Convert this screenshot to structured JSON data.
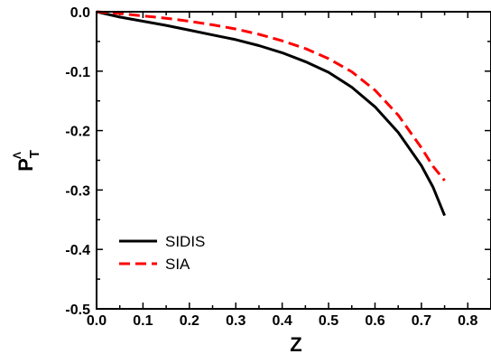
{
  "chart_data": {
    "type": "line",
    "title": "",
    "xlabel": "Z",
    "ylabel": {
      "main": "P",
      "sub": "T",
      "sup": "Λ"
    },
    "xlim": [
      0.0,
      0.85
    ],
    "ylim": [
      -0.5,
      0.0
    ],
    "x_ticks": [
      {
        "value": 0.0,
        "label": "0.0"
      },
      {
        "value": 0.1,
        "label": "0.1"
      },
      {
        "value": 0.2,
        "label": "0.2"
      },
      {
        "value": 0.3,
        "label": "0.3"
      },
      {
        "value": 0.4,
        "label": "0.4"
      },
      {
        "value": 0.5,
        "label": "0.5"
      },
      {
        "value": 0.6,
        "label": "0.6"
      },
      {
        "value": 0.7,
        "label": "0.7"
      },
      {
        "value": 0.8,
        "label": "0.8"
      }
    ],
    "y_ticks": [
      {
        "value": 0.0,
        "label": "0.0"
      },
      {
        "value": -0.1,
        "label": "-0.1"
      },
      {
        "value": -0.2,
        "label": "-0.2"
      },
      {
        "value": -0.3,
        "label": "-0.3"
      },
      {
        "value": -0.4,
        "label": "-0.4"
      },
      {
        "value": -0.5,
        "label": "-0.5"
      }
    ],
    "grid": false,
    "legend_position": "bottom-left",
    "series": [
      {
        "name": "SIDIS",
        "color": "#000000",
        "dash": "solid",
        "x": [
          0.0,
          0.05,
          0.1,
          0.15,
          0.2,
          0.25,
          0.3,
          0.35,
          0.4,
          0.45,
          0.5,
          0.55,
          0.6,
          0.65,
          0.7,
          0.725,
          0.75
        ],
        "y": [
          0.0,
          -0.009,
          -0.016,
          -0.023,
          -0.031,
          -0.039,
          -0.047,
          -0.057,
          -0.069,
          -0.084,
          -0.102,
          -0.127,
          -0.16,
          -0.203,
          -0.259,
          -0.295,
          -0.343
        ]
      },
      {
        "name": "SIA",
        "color": "#ff0000",
        "dash": "dashed",
        "x": [
          0.0,
          0.05,
          0.1,
          0.15,
          0.2,
          0.25,
          0.3,
          0.35,
          0.4,
          0.45,
          0.5,
          0.55,
          0.6,
          0.65,
          0.7,
          0.725,
          0.75
        ],
        "y": [
          0.0,
          -0.003,
          -0.007,
          -0.011,
          -0.016,
          -0.022,
          -0.029,
          -0.038,
          -0.049,
          -0.062,
          -0.079,
          -0.101,
          -0.132,
          -0.174,
          -0.229,
          -0.26,
          -0.284
        ]
      }
    ]
  }
}
